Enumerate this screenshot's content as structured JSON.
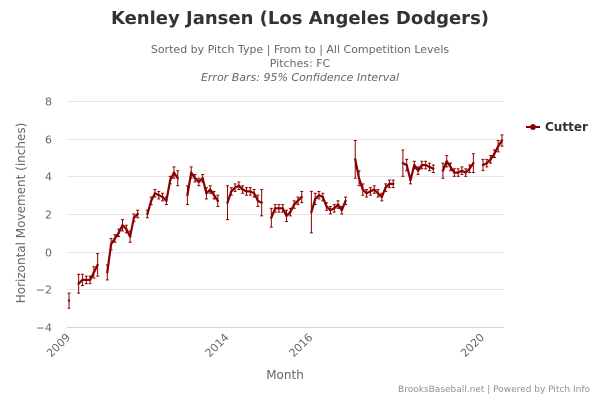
{
  "header": {
    "title": "Kenley Jansen (Los Angeles Dodgers)",
    "subtitle_line1": "Sorted by Pitch Type | From to | All Competition Levels",
    "subtitle_line2": "Pitches: FC",
    "subtitle_line3": "Error Bars: 95% Confidence Interval"
  },
  "credits": "BrooksBaseball.net | Powered by Pitch Info",
  "colors": {
    "series": "#8b0000",
    "grid": "#e6e6e6",
    "axis_line": "#ccd6eb",
    "text": "#666666"
  },
  "chart_data": {
    "type": "line",
    "title": "Kenley Jansen (Los Angeles Dodgers)",
    "xlabel": "Month",
    "ylabel": "Horizontal Movement (inches)",
    "ylim": [
      -4,
      8
    ],
    "yticks": [
      -4,
      -2,
      0,
      2,
      4,
      6,
      8
    ],
    "xtick_labels": [
      "2009",
      "2014",
      "2016",
      "2020"
    ],
    "grid": true,
    "legend_position": "top-right",
    "error_bars": "95% Confidence Interval",
    "series": [
      {
        "name": "Cutter",
        "seasons": [
          {
            "year": "2009",
            "values": [
              -2.6
            ],
            "err": [
              0.4
            ]
          },
          {
            "year": "2010",
            "values": [
              -1.7,
              -1.5,
              -1.5,
              -1.5,
              -1.1,
              -0.7
            ],
            "err": [
              0.5,
              0.3,
              0.2,
              0.2,
              0.3,
              0.6
            ]
          },
          {
            "year": "2011",
            "values": [
              -1.1,
              0.4,
              0.7,
              1.0,
              1.4,
              1.2,
              0.8,
              1.8,
              2.0
            ],
            "err": [
              0.4,
              0.3,
              0.2,
              0.2,
              0.3,
              0.2,
              0.3,
              0.2,
              0.2
            ]
          },
          {
            "year": "2012",
            "values": [
              2.0,
              2.7,
              3.1,
              3.0,
              2.9,
              2.7,
              3.8,
              4.2,
              3.9
            ],
            "err": [
              0.2,
              0.2,
              0.2,
              0.2,
              0.2,
              0.2,
              0.2,
              0.3,
              0.4
            ]
          },
          {
            "year": "2013",
            "values": [
              3.0,
              4.2,
              3.9,
              3.7,
              3.9,
              3.1,
              3.3,
              3.0,
              2.7
            ],
            "err": [
              0.5,
              0.3,
              0.2,
              0.2,
              0.2,
              0.3,
              0.2,
              0.2,
              0.3
            ]
          },
          {
            "year": "2014",
            "values": [
              2.6,
              3.2,
              3.4,
              3.5,
              3.3,
              3.2,
              3.2,
              3.1,
              2.7,
              2.6
            ],
            "err": [
              0.9,
              0.2,
              0.2,
              0.2,
              0.2,
              0.2,
              0.2,
              0.2,
              0.3,
              0.7
            ]
          },
          {
            "year": "2015",
            "values": [
              1.8,
              2.3,
              2.3,
              2.3,
              1.9,
              2.1,
              2.5,
              2.7,
              2.9
            ],
            "err": [
              0.5,
              0.2,
              0.2,
              0.2,
              0.3,
              0.2,
              0.2,
              0.2,
              0.3
            ]
          },
          {
            "year": "2016",
            "values": [
              2.1,
              2.8,
              3.0,
              2.9,
              2.4,
              2.2,
              2.3,
              2.5,
              2.2,
              2.7
            ],
            "err": [
              1.1,
              0.3,
              0.2,
              0.2,
              0.2,
              0.2,
              0.2,
              0.2,
              0.2,
              0.2
            ]
          },
          {
            "year": "2017",
            "values": [
              4.9,
              3.9,
              3.3,
              3.1,
              3.2,
              3.3,
              3.1,
              2.9,
              3.4,
              3.6,
              3.6
            ],
            "err": [
              1.0,
              0.4,
              0.3,
              0.2,
              0.2,
              0.2,
              0.2,
              0.2,
              0.2,
              0.2,
              0.2
            ]
          },
          {
            "year": "2018",
            "values": [
              4.7,
              4.6,
              3.8,
              4.6,
              4.3,
              4.6,
              4.6,
              4.5,
              4.4
            ],
            "err": [
              0.7,
              0.3,
              0.2,
              0.2,
              0.2,
              0.2,
              0.2,
              0.2,
              0.2
            ]
          },
          {
            "year": "2019",
            "values": [
              4.3,
              4.8,
              4.5,
              4.2,
              4.2,
              4.3,
              4.2,
              4.4,
              4.7
            ],
            "err": [
              0.4,
              0.3,
              0.2,
              0.2,
              0.2,
              0.2,
              0.2,
              0.2,
              0.5
            ]
          },
          {
            "year": "2020",
            "values": [
              4.6,
              4.7,
              4.9,
              5.2,
              5.6,
              5.9
            ],
            "err": [
              0.3,
              0.2,
              0.2,
              0.2,
              0.3,
              0.3
            ]
          }
        ]
      }
    ]
  }
}
